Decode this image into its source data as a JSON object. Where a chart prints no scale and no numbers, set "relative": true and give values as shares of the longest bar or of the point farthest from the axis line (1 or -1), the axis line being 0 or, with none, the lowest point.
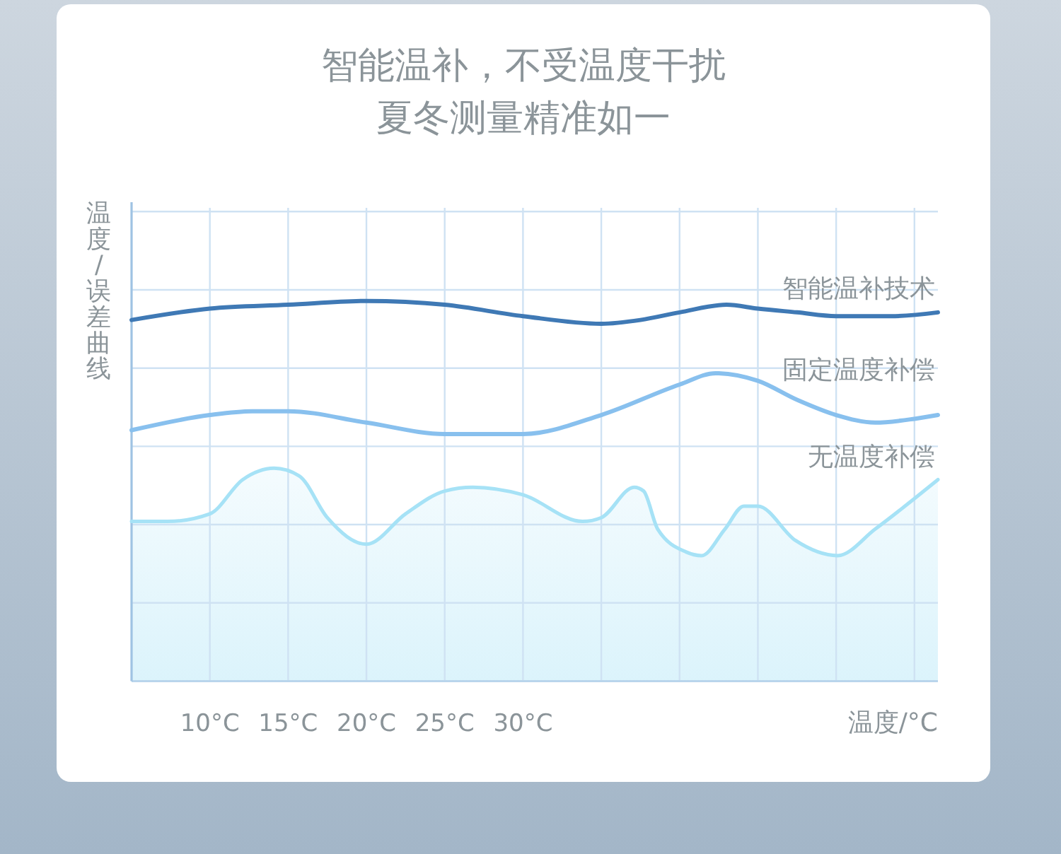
{
  "chart_data": {
    "type": "line",
    "title": "智能温补，不受温度干扰",
    "subtitle": "夏冬测量精准如一",
    "xlabel": "温度/°C",
    "ylabel": "温度/误差曲线",
    "relative": true,
    "xlim": [
      5,
      56.5
    ],
    "xticks": [
      {
        "value": 10,
        "label": "10°C"
      },
      {
        "value": 15,
        "label": "15°C"
      },
      {
        "value": 20,
        "label": "20°C"
      },
      {
        "value": 25,
        "label": "25°C"
      },
      {
        "value": 30,
        "label": "30°C"
      },
      {
        "value": 35,
        "label": null
      },
      {
        "value": 40,
        "label": null
      },
      {
        "value": 45,
        "label": null
      },
      {
        "value": 50,
        "label": null
      },
      {
        "value": 55,
        "label": null
      }
    ],
    "grid": true,
    "series": [
      {
        "name": "智能温补技术",
        "color": "#3f79b5",
        "x": [
          5,
          10,
          15,
          20,
          25,
          30,
          35,
          37.5,
          40,
          43,
          45,
          47.5,
          50,
          53.5,
          56.5
        ],
        "values": [
          0.95,
          0.98,
          0.99,
          1,
          0.99,
          0.96,
          0.94,
          0.95,
          0.97,
          0.99,
          0.98,
          0.97,
          0.96,
          0.96,
          0.97
        ]
      },
      {
        "name": "固定温度补偿",
        "color": "#88c0ee",
        "x": [
          5,
          10,
          12.7,
          15,
          20,
          25,
          27.5,
          30,
          35,
          40,
          42.3,
          45,
          47.5,
          50,
          52.5,
          55,
          56.5
        ],
        "values": [
          0.66,
          0.7,
          0.71,
          0.71,
          0.68,
          0.65,
          0.65,
          0.65,
          0.7,
          0.78,
          0.81,
          0.79,
          0.74,
          0.7,
          0.68,
          0.69,
          0.7
        ]
      },
      {
        "name": "无温度补偿",
        "type": "area",
        "color": "#a6e2f6",
        "x": [
          5,
          7.3,
          10,
          12.1,
          14.1,
          15.7,
          17.5,
          20,
          22.5,
          25,
          26.8,
          30,
          33.8,
          35,
          37.1,
          37.7,
          38.6,
          40.4,
          41.4,
          42.9,
          44.1,
          45,
          47.4,
          50.1,
          52.5,
          55,
          56.5
        ],
        "values": [
          0.42,
          0.42,
          0.44,
          0.53,
          0.56,
          0.54,
          0.43,
          0.36,
          0.44,
          0.5,
          0.51,
          0.49,
          0.42,
          0.43,
          0.51,
          0.5,
          0.4,
          0.34,
          0.33,
          0.4,
          0.46,
          0.46,
          0.37,
          0.33,
          0.4,
          0.48,
          0.53
        ]
      }
    ]
  }
}
